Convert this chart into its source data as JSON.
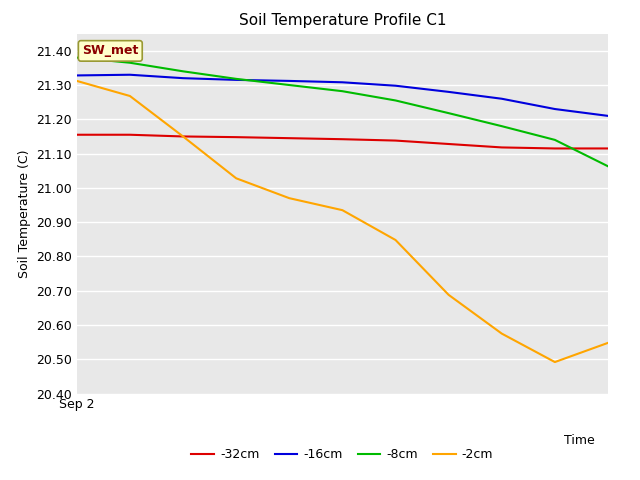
{
  "title": "Soil Temperature Profile C1",
  "xlabel": "Time",
  "ylabel": "Soil Temperature (C)",
  "ylim": [
    20.4,
    21.45
  ],
  "yticks": [
    20.4,
    20.5,
    20.6,
    20.7,
    20.8,
    20.9,
    21.0,
    21.1,
    21.2,
    21.3,
    21.4
  ],
  "x_label_start": "Sep 2",
  "annotation_text": "SW_met",
  "annotation_color": "#8B0000",
  "annotation_bg": "#FFFFCC",
  "annotation_border": "#999933",
  "series": {
    "-32cm": {
      "color": "#DD0000",
      "x": [
        0,
        1,
        2,
        3,
        4,
        5,
        6,
        7,
        8,
        9,
        10
      ],
      "y": [
        21.155,
        21.155,
        21.15,
        21.148,
        21.145,
        21.142,
        21.138,
        21.128,
        21.118,
        21.115,
        21.115
      ]
    },
    "-16cm": {
      "color": "#0000DD",
      "x": [
        0,
        1,
        2,
        3,
        4,
        5,
        6,
        7,
        8,
        9,
        10
      ],
      "y": [
        21.328,
        21.33,
        21.32,
        21.315,
        21.312,
        21.308,
        21.298,
        21.28,
        21.26,
        21.23,
        21.21
      ]
    },
    "-8cm": {
      "color": "#00BB00",
      "x": [
        0,
        1,
        2,
        3,
        4,
        5,
        6,
        7,
        8,
        9,
        10
      ],
      "y": [
        21.38,
        21.365,
        21.34,
        21.318,
        21.3,
        21.282,
        21.255,
        21.218,
        21.18,
        21.14,
        21.063
      ]
    },
    "-2cm": {
      "color": "#FFA500",
      "x": [
        0,
        1,
        2,
        3,
        4,
        5,
        6,
        7,
        8,
        9,
        10
      ],
      "y": [
        21.312,
        21.268,
        21.15,
        21.028,
        20.97,
        20.935,
        20.848,
        20.688,
        20.575,
        20.492,
        20.548
      ]
    }
  },
  "legend_order": [
    "-32cm",
    "-16cm",
    "-8cm",
    "-2cm"
  ],
  "plot_bg_color": "#E8E8E8",
  "fig_bg_color": "#FFFFFF",
  "grid_color": "#FFFFFF",
  "title_fontsize": 11,
  "axis_fontsize": 9,
  "tick_fontsize": 9,
  "legend_fontsize": 9,
  "line_width": 1.5
}
